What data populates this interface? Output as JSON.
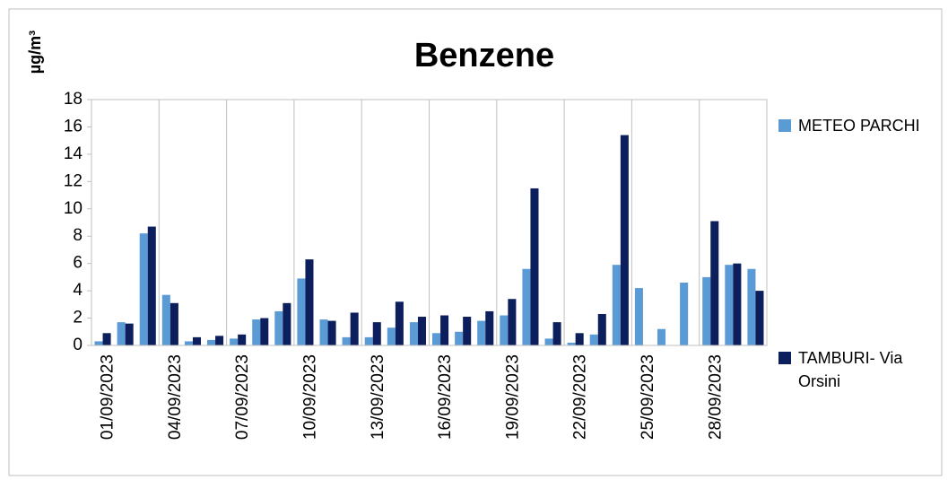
{
  "chart_data": {
    "type": "bar",
    "title": "Benzene",
    "y_label": "µg/m³",
    "categories": [
      "01/09/2023",
      null,
      null,
      "04/09/2023",
      null,
      null,
      "07/09/2023",
      null,
      null,
      "10/09/2023",
      null,
      null,
      "13/09/2023",
      null,
      null,
      "16/09/2023",
      null,
      null,
      "19/09/2023",
      null,
      null,
      "22/09/2023",
      null,
      null,
      "25/09/2023",
      null,
      null,
      "28/09/2023",
      null,
      null
    ],
    "series": [
      {
        "name": "METEO PARCHI",
        "color": "#5b9bd5",
        "values": [
          0.3,
          1.7,
          8.2,
          3.7,
          0.3,
          0.4,
          0.5,
          1.9,
          2.5,
          4.9,
          1.9,
          0.6,
          0.6,
          1.3,
          1.7,
          0.9,
          1.0,
          1.8,
          2.2,
          5.6,
          0.5,
          0.2,
          0.8,
          5.9,
          4.2,
          1.2,
          4.6,
          5.0,
          5.9,
          5.6
        ]
      },
      {
        "name": "TAMBURI- Via Orsini",
        "color": "#0c1e5b",
        "values": [
          0.9,
          1.6,
          8.7,
          3.1,
          0.6,
          0.7,
          0.8,
          2.0,
          3.1,
          6.3,
          1.8,
          2.4,
          1.7,
          3.2,
          2.1,
          2.2,
          2.1,
          2.5,
          3.4,
          11.5,
          1.7,
          0.9,
          2.3,
          15.4,
          null,
          null,
          null,
          9.1,
          6.0,
          4.0
        ]
      }
    ],
    "ylim": [
      0,
      18
    ],
    "yticks": [
      0,
      2,
      4,
      6,
      8,
      10,
      12,
      14,
      16,
      18
    ]
  }
}
